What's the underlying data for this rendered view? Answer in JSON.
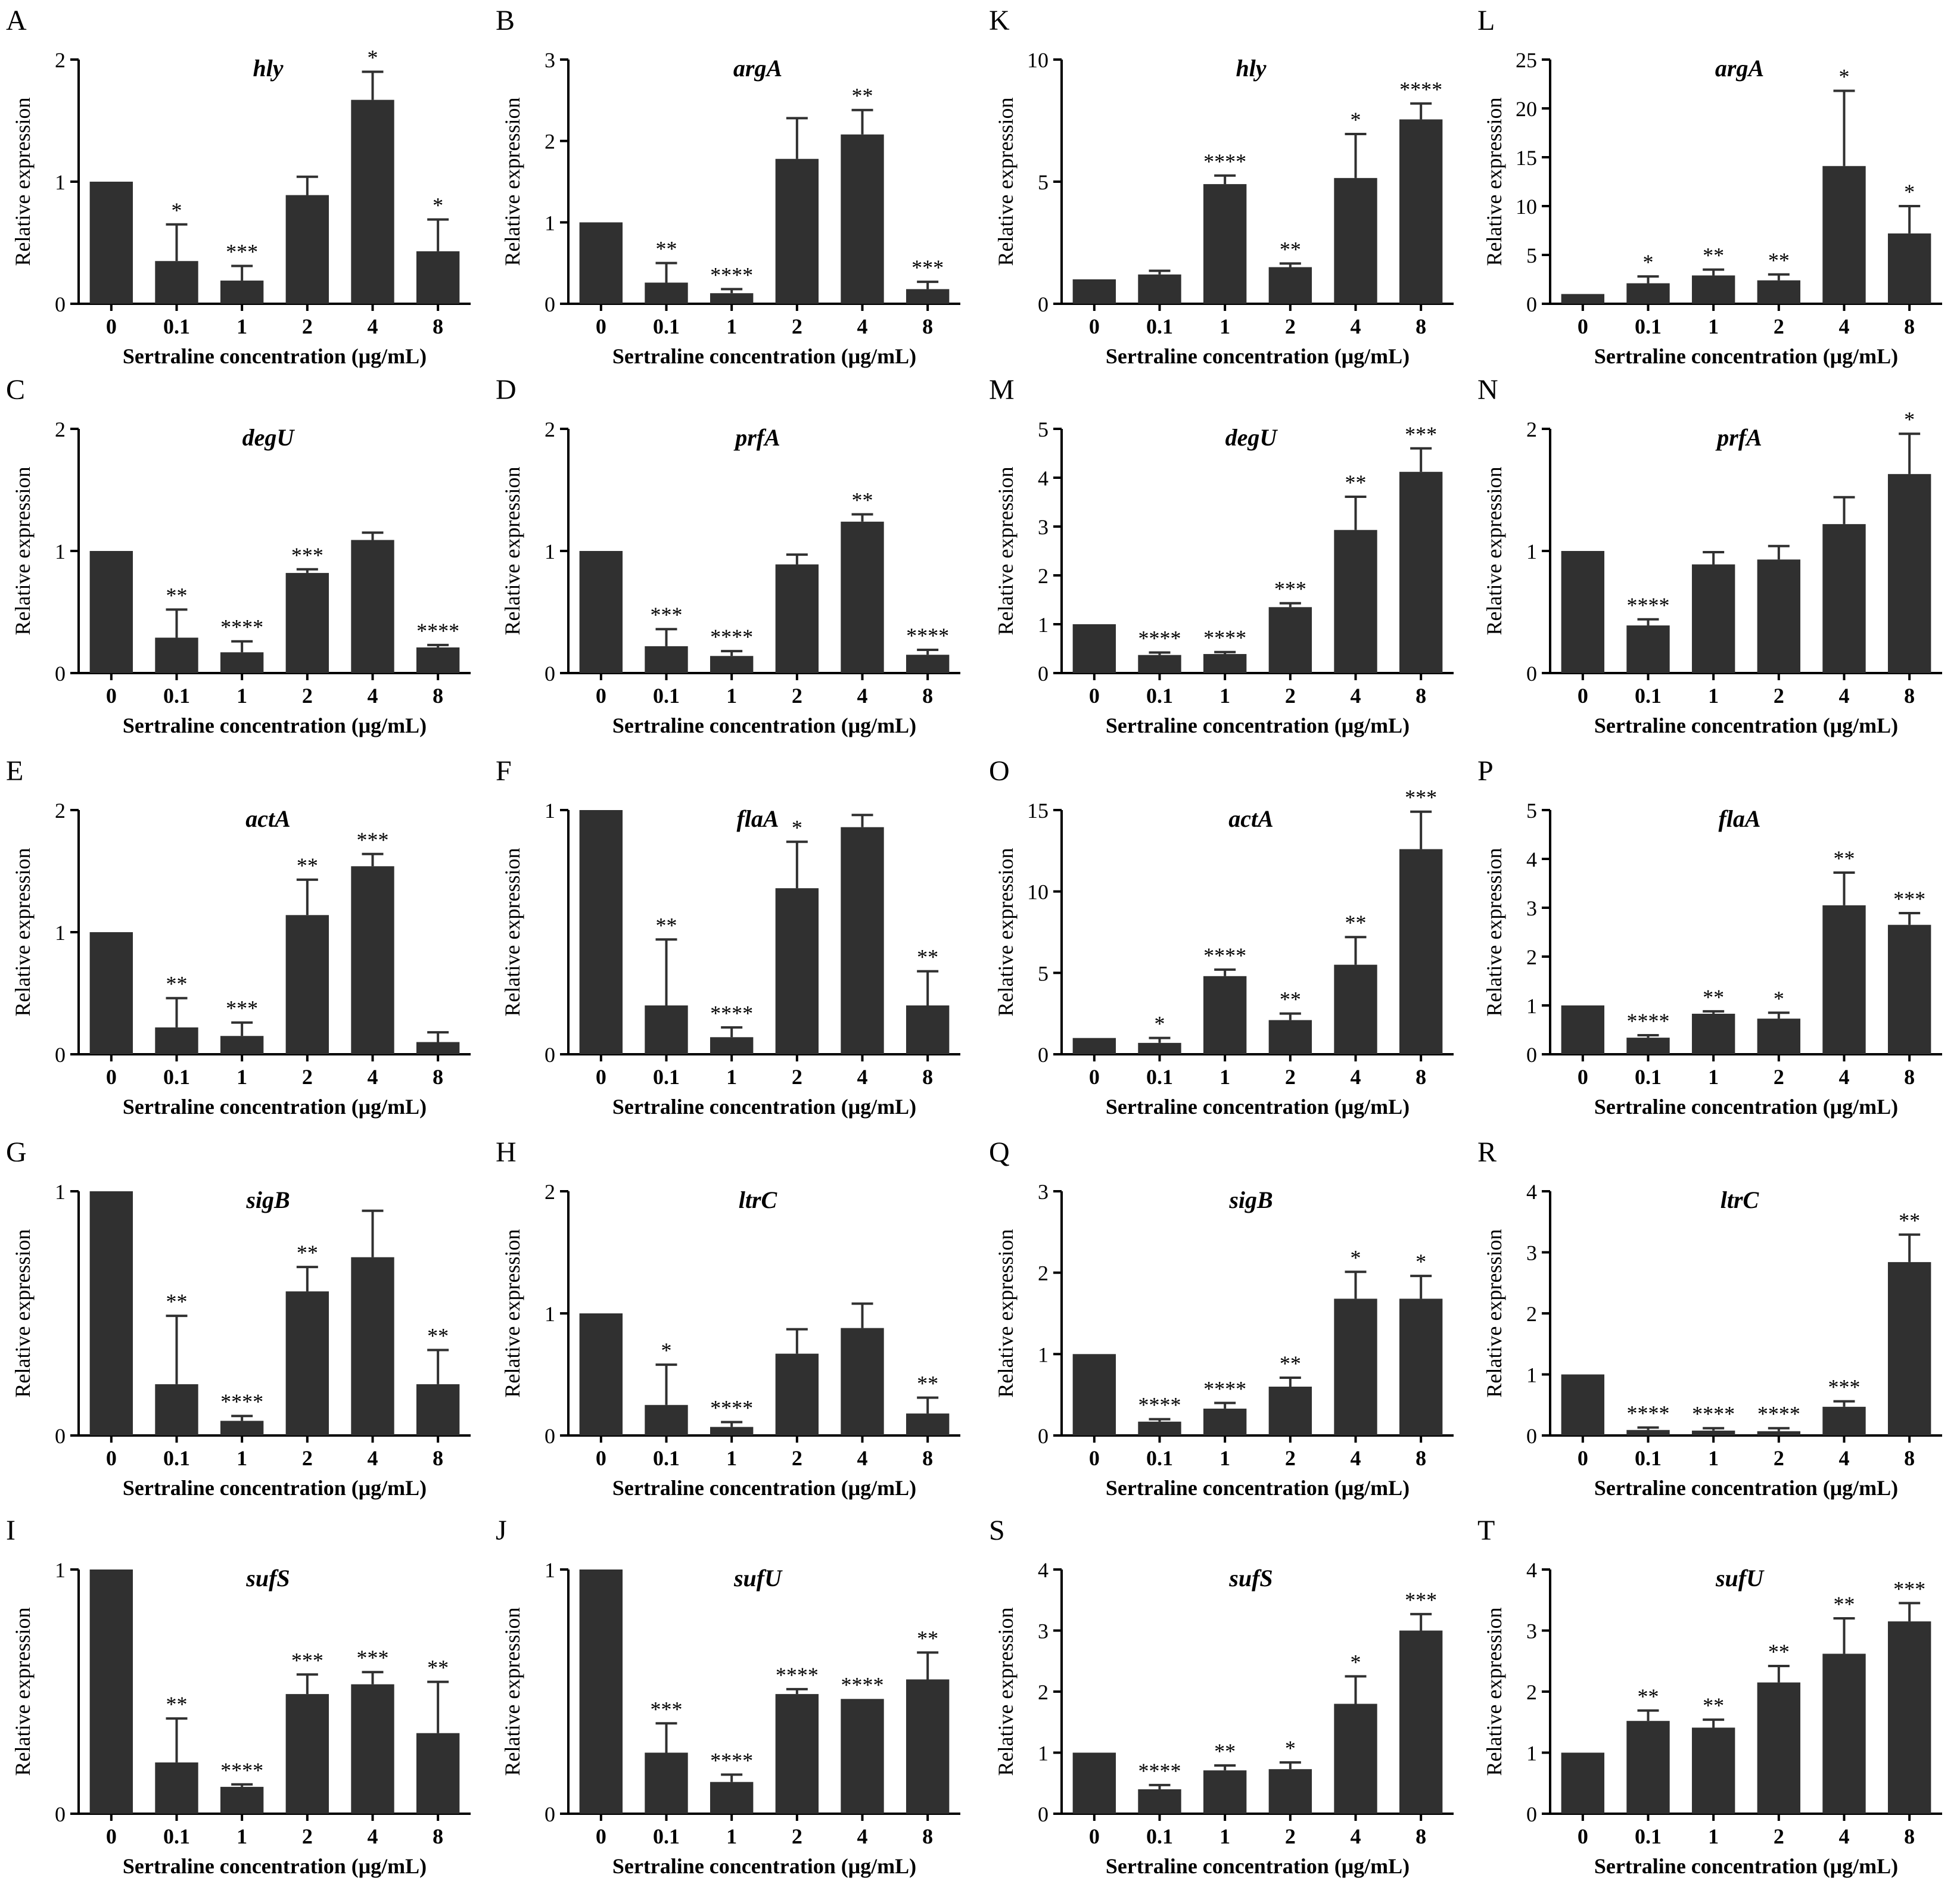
{
  "figure": {
    "x_categories": [
      "0",
      "0.1",
      "1",
      "2",
      "4",
      "8"
    ],
    "xlabel": "Sertraline concentration (μg/mL)",
    "ylabel": "Relative expression",
    "bar_color": "#303030"
  },
  "chart_data": [
    {
      "type": "bar",
      "panel": "A",
      "title": "hly",
      "categories": [
        "0",
        "0.1",
        "1",
        "2",
        "4",
        "8"
      ],
      "values": [
        1.0,
        0.35,
        0.19,
        0.89,
        1.67,
        0.43
      ],
      "errors": [
        0,
        0.3,
        0.12,
        0.15,
        0.23,
        0.26
      ],
      "sig": [
        "",
        "*",
        "***",
        "",
        "*",
        "*"
      ],
      "ylim": [
        0,
        2
      ],
      "yticks": [
        0,
        1,
        2
      ],
      "xlabel": "Sertraline concentration (μg/mL)",
      "ylabel": "Relative expression"
    },
    {
      "type": "bar",
      "panel": "B",
      "title": "argA",
      "categories": [
        "0",
        "0.1",
        "1",
        "2",
        "4",
        "8"
      ],
      "values": [
        1.0,
        0.26,
        0.13,
        1.78,
        2.08,
        0.18
      ],
      "errors": [
        0,
        0.24,
        0.05,
        0.5,
        0.3,
        0.09
      ],
      "sig": [
        "",
        "**",
        "****",
        "",
        "**",
        "***"
      ],
      "ylim": [
        0,
        3
      ],
      "yticks": [
        0,
        1,
        2,
        3
      ],
      "xlabel": "Sertraline concentration (μg/mL)",
      "ylabel": "Relative expression"
    },
    {
      "type": "bar",
      "panel": "K",
      "title": "hly",
      "categories": [
        "0",
        "0.1",
        "1",
        "2",
        "4",
        "8"
      ],
      "values": [
        1.0,
        1.2,
        4.9,
        1.5,
        5.15,
        7.55
      ],
      "errors": [
        0,
        0.15,
        0.35,
        0.15,
        1.8,
        0.65
      ],
      "sig": [
        "",
        "",
        "****",
        "**",
        "*",
        "****"
      ],
      "ylim": [
        0,
        10
      ],
      "yticks": [
        0,
        5,
        10
      ],
      "xlabel": "Sertraline concentration (μg/mL)",
      "ylabel": "Relative expression"
    },
    {
      "type": "bar",
      "panel": "L",
      "title": "argA",
      "categories": [
        "0",
        "0.1",
        "1",
        "2",
        "4",
        "8"
      ],
      "values": [
        1.0,
        2.1,
        2.9,
        2.4,
        14.1,
        7.2
      ],
      "errors": [
        0,
        0.7,
        0.6,
        0.6,
        7.7,
        2.8
      ],
      "sig": [
        "",
        "*",
        "**",
        "**",
        "*",
        "*"
      ],
      "ylim": [
        0,
        25
      ],
      "yticks": [
        0,
        5,
        10,
        15,
        20,
        25
      ],
      "xlabel": "Sertraline concentration (μg/mL)",
      "ylabel": "Relative expression"
    },
    {
      "type": "bar",
      "panel": "C",
      "title": "degU",
      "categories": [
        "0",
        "0.1",
        "1",
        "2",
        "4",
        "8"
      ],
      "values": [
        1.0,
        0.29,
        0.17,
        0.82,
        1.09,
        0.21
      ],
      "errors": [
        0,
        0.23,
        0.09,
        0.03,
        0.06,
        0.02
      ],
      "sig": [
        "",
        "**",
        "****",
        "***",
        "",
        "****"
      ],
      "ylim": [
        0,
        2
      ],
      "yticks": [
        0,
        1,
        2
      ],
      "xlabel": "Sertraline concentration (μg/mL)",
      "ylabel": "Relative expression"
    },
    {
      "type": "bar",
      "panel": "D",
      "title": "prfA",
      "categories": [
        "0",
        "0.1",
        "1",
        "2",
        "4",
        "8"
      ],
      "values": [
        1.0,
        0.22,
        0.14,
        0.89,
        1.24,
        0.15
      ],
      "errors": [
        0,
        0.14,
        0.04,
        0.08,
        0.06,
        0.04
      ],
      "sig": [
        "",
        "***",
        "****",
        "",
        "**",
        "****"
      ],
      "ylim": [
        0,
        2
      ],
      "yticks": [
        0,
        1,
        2
      ],
      "xlabel": "Sertraline concentration (μg/mL)",
      "ylabel": "Relative expression"
    },
    {
      "type": "bar",
      "panel": "M",
      "title": "degU",
      "categories": [
        "0",
        "0.1",
        "1",
        "2",
        "4",
        "8"
      ],
      "values": [
        1.0,
        0.37,
        0.39,
        1.35,
        2.93,
        4.12
      ],
      "errors": [
        0,
        0.05,
        0.04,
        0.08,
        0.68,
        0.48
      ],
      "sig": [
        "",
        "****",
        "****",
        "***",
        "**",
        "***"
      ],
      "ylim": [
        0,
        5
      ],
      "yticks": [
        0,
        1,
        2,
        3,
        4,
        5
      ],
      "xlabel": "Sertraline concentration (μg/mL)",
      "ylabel": "Relative expression"
    },
    {
      "type": "bar",
      "panel": "N",
      "title": "prfA",
      "categories": [
        "0",
        "0.1",
        "1",
        "2",
        "4",
        "8"
      ],
      "values": [
        1.0,
        0.39,
        0.89,
        0.93,
        1.22,
        1.63
      ],
      "errors": [
        0,
        0.05,
        0.1,
        0.11,
        0.22,
        0.33
      ],
      "sig": [
        "",
        "****",
        "",
        "",
        "",
        "*"
      ],
      "ylim": [
        0,
        2
      ],
      "yticks": [
        0,
        1,
        2
      ],
      "xlabel": "Sertraline concentration (μg/mL)",
      "ylabel": "Relative expression"
    },
    {
      "type": "bar",
      "panel": "E",
      "title": "actA",
      "categories": [
        "0",
        "0.1",
        "1",
        "2",
        "4",
        "8"
      ],
      "values": [
        1.0,
        0.22,
        0.15,
        1.14,
        1.54,
        0.1
      ],
      "errors": [
        0,
        0.24,
        0.11,
        0.29,
        0.1,
        0.08
      ],
      "sig": [
        "",
        "**",
        "***",
        "**",
        "***",
        ""
      ],
      "ylim": [
        0,
        2
      ],
      "yticks": [
        0,
        1,
        2
      ],
      "xlabel": "Sertraline concentration (μg/mL)",
      "ylabel": "Relative expression"
    },
    {
      "type": "bar",
      "panel": "F",
      "title": "flaA",
      "categories": [
        "0",
        "0.1",
        "1",
        "2",
        "4",
        "8"
      ],
      "values": [
        1.0,
        0.2,
        0.07,
        0.68,
        0.93,
        0.2
      ],
      "errors": [
        0,
        0.27,
        0.04,
        0.19,
        0.05,
        0.14
      ],
      "sig": [
        "",
        "**",
        "****",
        "*",
        "",
        "**"
      ],
      "ylim": [
        0,
        1
      ],
      "yticks": [
        0,
        1
      ],
      "xlabel": "Sertraline concentration (μg/mL)",
      "ylabel": "Relative expression"
    },
    {
      "type": "bar",
      "panel": "O",
      "title": "actA",
      "categories": [
        "0",
        "0.1",
        "1",
        "2",
        "4",
        "8"
      ],
      "values": [
        1.0,
        0.7,
        4.8,
        2.1,
        5.5,
        12.6
      ],
      "errors": [
        0,
        0.3,
        0.4,
        0.4,
        1.7,
        2.3
      ],
      "sig": [
        "",
        "*",
        "****",
        "**",
        "**",
        "***"
      ],
      "ylim": [
        0,
        15
      ],
      "yticks": [
        0,
        5,
        10,
        15
      ],
      "xlabel": "Sertraline concentration (μg/mL)",
      "ylabel": "Relative expression"
    },
    {
      "type": "bar",
      "panel": "P",
      "title": "flaA",
      "categories": [
        "0",
        "0.1",
        "1",
        "2",
        "4",
        "8"
      ],
      "values": [
        1.0,
        0.34,
        0.83,
        0.73,
        3.05,
        2.65
      ],
      "errors": [
        0,
        0.05,
        0.05,
        0.12,
        0.67,
        0.24
      ],
      "sig": [
        "",
        "****",
        "**",
        "*",
        "**",
        "***"
      ],
      "ylim": [
        0,
        5
      ],
      "yticks": [
        0,
        1,
        2,
        3,
        4,
        5
      ],
      "xlabel": "Sertraline concentration (μg/mL)",
      "ylabel": "Relative expression"
    },
    {
      "type": "bar",
      "panel": "G",
      "title": "sigB",
      "categories": [
        "0",
        "0.1",
        "1",
        "2",
        "4",
        "8"
      ],
      "values": [
        1.0,
        0.21,
        0.06,
        0.59,
        0.73,
        0.21
      ],
      "errors": [
        0,
        0.28,
        0.02,
        0.1,
        0.19,
        0.14
      ],
      "sig": [
        "",
        "**",
        "****",
        "**",
        "",
        "**"
      ],
      "ylim": [
        0,
        1
      ],
      "yticks": [
        0,
        1
      ],
      "xlabel": "Sertraline concentration (μg/mL)",
      "ylabel": "Relative expression"
    },
    {
      "type": "bar",
      "panel": "H",
      "title": "ltrC",
      "categories": [
        "0",
        "0.1",
        "1",
        "2",
        "4",
        "8"
      ],
      "values": [
        1.0,
        0.25,
        0.07,
        0.67,
        0.88,
        0.18
      ],
      "errors": [
        0,
        0.33,
        0.04,
        0.2,
        0.2,
        0.13
      ],
      "sig": [
        "",
        "*",
        "****",
        "",
        "",
        "**"
      ],
      "ylim": [
        0,
        2
      ],
      "yticks": [
        0,
        1,
        2
      ],
      "xlabel": "Sertraline concentration (μg/mL)",
      "ylabel": "Relative expression"
    },
    {
      "type": "bar",
      "panel": "Q",
      "title": "sigB",
      "categories": [
        "0",
        "0.1",
        "1",
        "2",
        "4",
        "8"
      ],
      "values": [
        1.0,
        0.17,
        0.33,
        0.6,
        1.68,
        1.68
      ],
      "errors": [
        0,
        0.03,
        0.07,
        0.11,
        0.33,
        0.28
      ],
      "sig": [
        "",
        "****",
        "****",
        "**",
        "*",
        "*"
      ],
      "ylim": [
        0,
        3
      ],
      "yticks": [
        0,
        1,
        2,
        3
      ],
      "xlabel": "Sertraline concentration (μg/mL)",
      "ylabel": "Relative expression"
    },
    {
      "type": "bar",
      "panel": "R",
      "title": "ltrC",
      "categories": [
        "0",
        "0.1",
        "1",
        "2",
        "4",
        "8"
      ],
      "values": [
        1.0,
        0.09,
        0.08,
        0.07,
        0.47,
        2.84
      ],
      "errors": [
        0,
        0.04,
        0.04,
        0.05,
        0.09,
        0.45
      ],
      "sig": [
        "",
        "****",
        "****",
        "****",
        "***",
        "**"
      ],
      "ylim": [
        0,
        4
      ],
      "yticks": [
        0,
        1,
        2,
        3,
        4
      ],
      "xlabel": "Sertraline concentration (μg/mL)",
      "ylabel": "Relative expression"
    },
    {
      "type": "bar",
      "panel": "I",
      "title": "sufS",
      "categories": [
        "0",
        "0.1",
        "1",
        "2",
        "4",
        "8"
      ],
      "values": [
        1.0,
        0.21,
        0.11,
        0.49,
        0.53,
        0.33
      ],
      "errors": [
        0,
        0.18,
        0.01,
        0.08,
        0.05,
        0.21
      ],
      "sig": [
        "",
        "**",
        "****",
        "***",
        "***",
        "**"
      ],
      "ylim": [
        0,
        1
      ],
      "yticks": [
        0,
        1
      ],
      "xlabel": "Sertraline concentration (μg/mL)",
      "ylabel": "Relative expression"
    },
    {
      "type": "bar",
      "panel": "J",
      "title": "sufU",
      "categories": [
        "0",
        "0.1",
        "1",
        "2",
        "4",
        "8"
      ],
      "values": [
        1.0,
        0.25,
        0.13,
        0.49,
        0.47,
        0.55
      ],
      "errors": [
        0,
        0.12,
        0.03,
        0.02,
        0,
        0.11
      ],
      "sig": [
        "",
        "***",
        "****",
        "****",
        "****",
        "**"
      ],
      "ylim": [
        0,
        1
      ],
      "yticks": [
        0,
        1
      ],
      "xlabel": "Sertraline concentration (μg/mL)",
      "ylabel": "Relative expression"
    },
    {
      "type": "bar",
      "panel": "S",
      "title": "sufS",
      "categories": [
        "0",
        "0.1",
        "1",
        "2",
        "4",
        "8"
      ],
      "values": [
        1.0,
        0.4,
        0.71,
        0.73,
        1.8,
        3.0
      ],
      "errors": [
        0,
        0.07,
        0.08,
        0.11,
        0.45,
        0.27
      ],
      "sig": [
        "",
        "****",
        "**",
        "*",
        "*",
        "***"
      ],
      "ylim": [
        0,
        4
      ],
      "yticks": [
        0,
        1,
        2,
        3,
        4
      ],
      "xlabel": "Sertraline concentration (μg/mL)",
      "ylabel": "Relative expression"
    },
    {
      "type": "bar",
      "panel": "T",
      "title": "sufU",
      "categories": [
        "0",
        "0.1",
        "1",
        "2",
        "4",
        "8"
      ],
      "values": [
        1.0,
        1.52,
        1.41,
        2.15,
        2.62,
        3.15
      ],
      "errors": [
        0,
        0.17,
        0.13,
        0.27,
        0.58,
        0.3
      ],
      "sig": [
        "",
        "**",
        "**",
        "**",
        "**",
        "***"
      ],
      "ylim": [
        0,
        4
      ],
      "yticks": [
        0,
        1,
        2,
        3,
        4
      ],
      "xlabel": "Sertraline concentration (μg/mL)",
      "ylabel": "Relative expression"
    }
  ]
}
